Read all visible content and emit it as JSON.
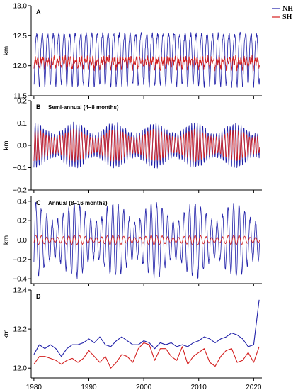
{
  "chart_data": [
    {
      "type": "line",
      "panel_label": "A",
      "title": "",
      "xlabel": "",
      "ylabel": "km",
      "xlim": [
        1979.5,
        2021.5
      ],
      "ylim": [
        11.5,
        13.0
      ],
      "y_ticks": [
        "11.5",
        "12.0",
        "12.5",
        "13.0"
      ],
      "y_tick_values": [
        11.5,
        12.0,
        12.5,
        13.0
      ],
      "grid": false,
      "series": [
        {
          "name": "NH",
          "color": "#1f1fa8",
          "mean": 12.17,
          "annual_amplitude": 0.42,
          "semiannual_amplitude": 0.08,
          "noise": 0.04
        },
        {
          "name": "SH",
          "color": "#d42020",
          "mean": 12.06,
          "annual_amplitude": 0.04,
          "semiannual_amplitude": 0.06,
          "noise": 0.05
        }
      ]
    },
    {
      "type": "line",
      "panel_label": "B",
      "title": "Semi-annual (4–8 months)",
      "xlabel": "",
      "ylabel": "km",
      "xlim": [
        1979.5,
        2021.5
      ],
      "ylim": [
        -0.2,
        0.2
      ],
      "y_ticks": [
        "−0.2",
        "−0.1",
        "0.0",
        "0.1",
        "0.2"
      ],
      "y_tick_values": [
        -0.2,
        -0.1,
        0.0,
        0.1,
        0.2
      ],
      "grid": false,
      "series": [
        {
          "name": "NH",
          "color": "#1f1fa8",
          "amplitude": 0.1,
          "period_years": 0.5
        },
        {
          "name": "SH",
          "color": "#d42020",
          "amplitude": 0.07,
          "period_years": 0.5
        }
      ]
    },
    {
      "type": "line",
      "panel_label": "C",
      "title": "Annual (8–16 months)",
      "xlabel": "",
      "ylabel": "km",
      "xlim": [
        1979.5,
        2021.5
      ],
      "ylim": [
        -0.45,
        0.45
      ],
      "y_ticks": [
        "−0.4",
        "−0.2",
        "0.0",
        "0.2",
        "0.4"
      ],
      "y_tick_values": [
        -0.4,
        -0.2,
        0.0,
        0.2,
        0.4
      ],
      "grid": false,
      "series": [
        {
          "name": "NH",
          "color": "#1f1fa8",
          "amplitude": 0.38,
          "period_years": 1.0
        },
        {
          "name": "SH",
          "color": "#d42020",
          "amplitude": 0.05,
          "period_years": 1.0
        }
      ]
    },
    {
      "type": "line",
      "panel_label": "D",
      "title": "",
      "xlabel": "",
      "ylabel": "km",
      "xlim": [
        1979.5,
        2021.5
      ],
      "ylim": [
        11.95,
        12.4
      ],
      "y_ticks": [
        "12.0",
        "12.2",
        "12.4"
      ],
      "y_tick_values": [
        12.0,
        12.2,
        12.4
      ],
      "x_ticks": [
        "1980",
        "1990",
        "2000",
        "2010",
        "2020"
      ],
      "x_tick_values": [
        1980,
        1990,
        2000,
        2010,
        2020
      ],
      "grid": false,
      "series": [
        {
          "name": "NH",
          "color": "#1f1fa8",
          "x": [
            1980,
            1981,
            1982,
            1983,
            1984,
            1985,
            1986,
            1987,
            1988,
            1989,
            1990,
            1991,
            1992,
            1993,
            1994,
            1995,
            1996,
            1997,
            1998,
            1999,
            2000,
            2001,
            2002,
            2003,
            2004,
            2005,
            2006,
            2007,
            2008,
            2009,
            2010,
            2011,
            2012,
            2013,
            2014,
            2015,
            2016,
            2017,
            2018,
            2019,
            2020,
            2021
          ],
          "y": [
            12.07,
            12.12,
            12.1,
            12.12,
            12.1,
            12.06,
            12.1,
            12.12,
            12.12,
            12.13,
            12.15,
            12.13,
            12.16,
            12.12,
            12.11,
            12.14,
            12.16,
            12.14,
            12.12,
            12.12,
            12.14,
            12.13,
            12.1,
            12.13,
            12.12,
            12.13,
            12.11,
            12.12,
            12.11,
            12.13,
            12.14,
            12.16,
            12.15,
            12.13,
            12.15,
            12.16,
            12.18,
            12.17,
            12.15,
            12.11,
            12.12,
            12.35
          ]
        },
        {
          "name": "SH",
          "color": "#d42020",
          "x": [
            1980,
            1981,
            1982,
            1983,
            1984,
            1985,
            1986,
            1987,
            1988,
            1989,
            1990,
            1991,
            1992,
            1993,
            1994,
            1995,
            1996,
            1997,
            1998,
            1999,
            2000,
            2001,
            2002,
            2003,
            2004,
            2005,
            2006,
            2007,
            2008,
            2009,
            2010,
            2011,
            2012,
            2013,
            2014,
            2015,
            2016,
            2017,
            2018,
            2019,
            2020,
            2021
          ],
          "y": [
            12.02,
            12.06,
            12.06,
            12.05,
            12.04,
            12.02,
            12.04,
            12.05,
            12.03,
            12.05,
            12.09,
            12.06,
            12.03,
            12.06,
            12.0,
            12.03,
            12.07,
            12.06,
            12.03,
            12.1,
            12.13,
            12.12,
            12.04,
            12.1,
            12.1,
            12.06,
            12.04,
            12.11,
            12.02,
            12.06,
            12.08,
            12.1,
            12.03,
            12.01,
            12.06,
            12.09,
            12.1,
            12.03,
            12.04,
            12.08,
            12.03,
            12.11
          ]
        }
      ]
    }
  ],
  "legend": {
    "placement": "top-right",
    "items": [
      {
        "label": "NH",
        "color": "#1f1fa8"
      },
      {
        "label": "SH",
        "color": "#d42020"
      }
    ]
  }
}
